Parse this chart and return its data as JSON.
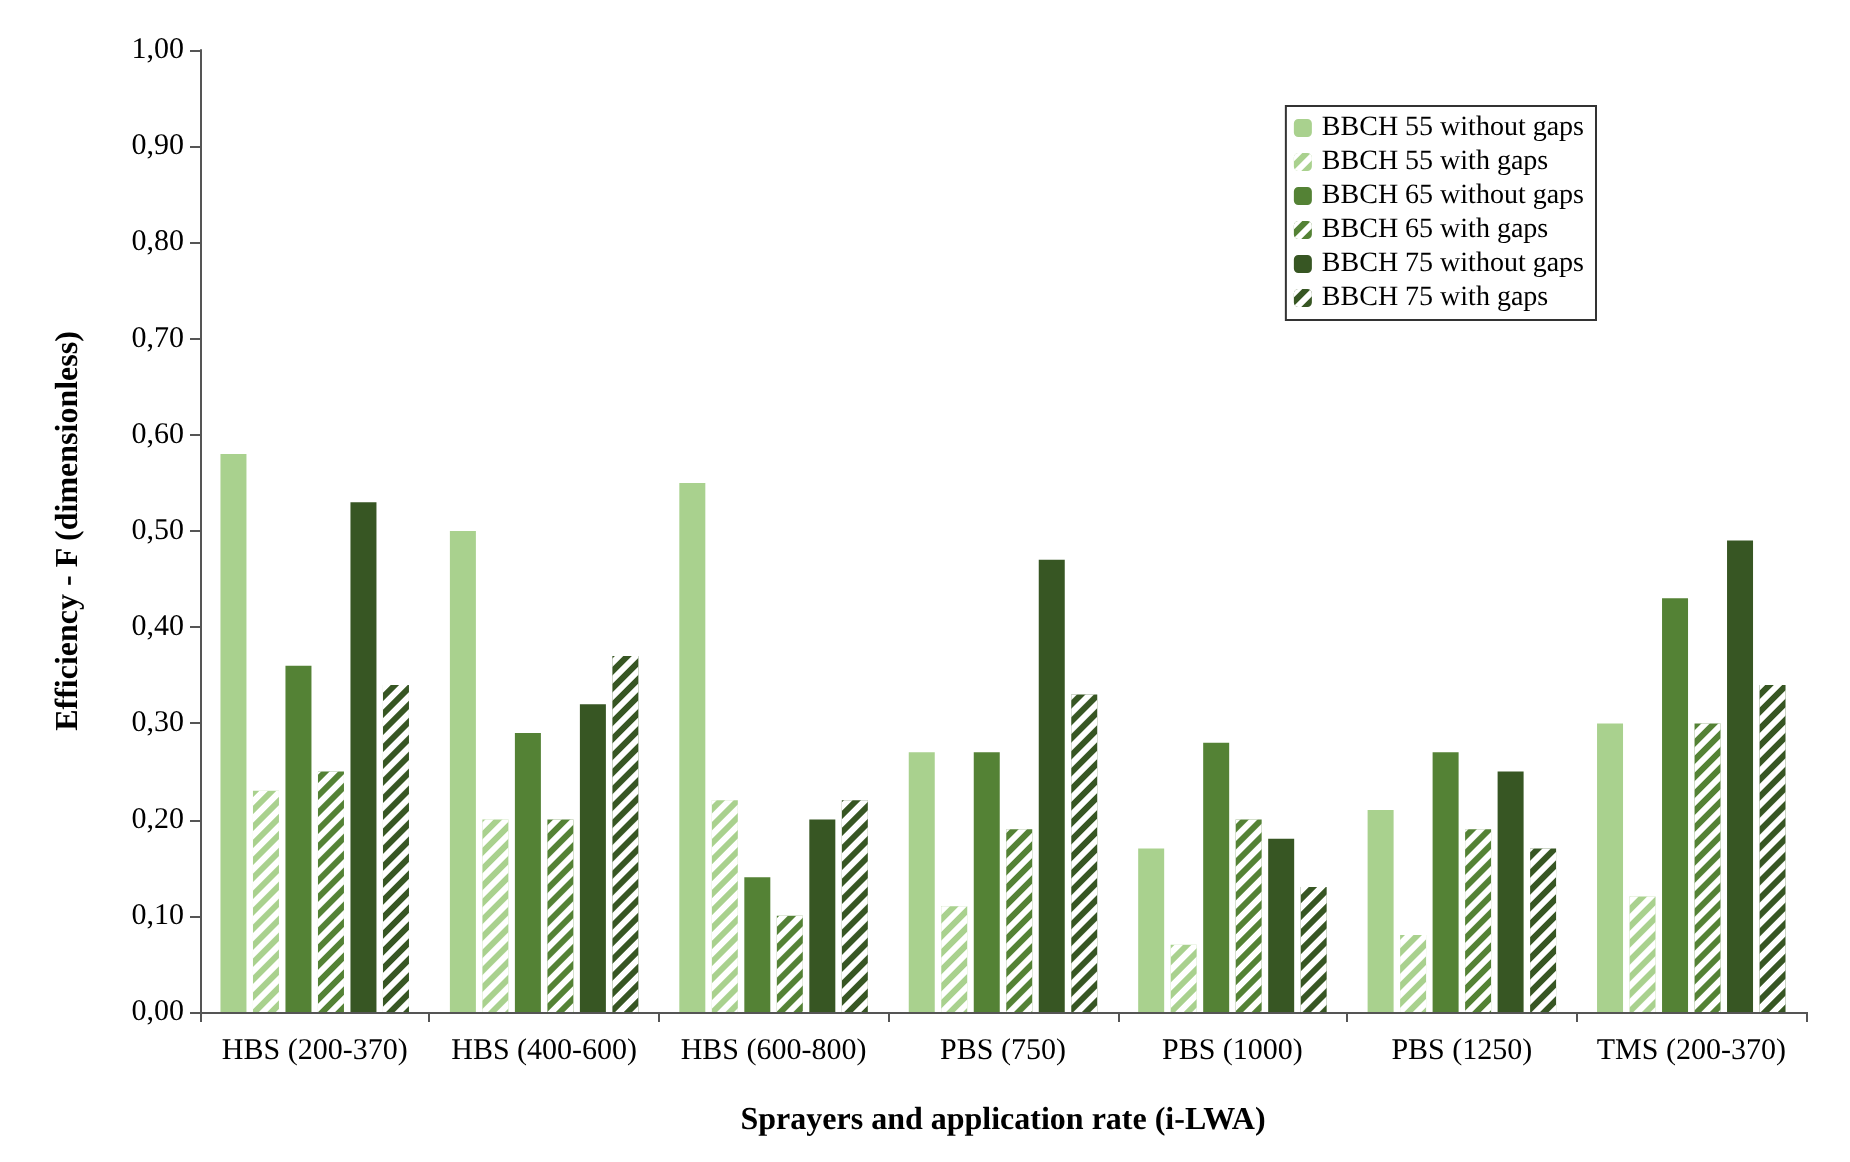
{
  "chart_data": {
    "type": "bar",
    "xlabel": "Sprayers and application rate (i-LWA)",
    "ylabel": "Efficiency - F (dimensionless)",
    "categories": [
      "HBS (200-370)",
      "HBS (400-600)",
      "HBS (600-800)",
      "PBS (750)",
      "PBS (1000)",
      "PBS (1250)",
      "TMS (200-370)"
    ],
    "series": [
      {
        "name": "BBCH 55 without gaps",
        "color": "#a9d18e",
        "values": [
          0.58,
          0.5,
          0.55,
          0.27,
          0.17,
          0.21,
          0.3
        ]
      },
      {
        "name": "BBCH 55 with gaps",
        "color": "#a9d18e",
        "line_style": "dashed",
        "values": [
          0.23,
          0.2,
          0.22,
          0.11,
          0.07,
          0.08,
          0.12
        ]
      },
      {
        "name": "BBCH 65 without gaps",
        "color": "#548235",
        "values": [
          0.36,
          0.29,
          0.14,
          0.27,
          0.28,
          0.27,
          0.43
        ]
      },
      {
        "name": "BBCH 65 with gaps",
        "color": "#548235",
        "line_style": "dashed",
        "values": [
          0.25,
          0.2,
          0.1,
          0.19,
          0.2,
          0.19,
          0.3
        ]
      },
      {
        "name": "BBCH 75 without gaps",
        "color": "#375623",
        "values": [
          0.53,
          0.32,
          0.2,
          0.47,
          0.18,
          0.25,
          0.49
        ]
      },
      {
        "name": "BBCH 75 with gaps",
        "color": "#375623",
        "line_style": "dashed",
        "values": [
          0.34,
          0.37,
          0.22,
          0.33,
          0.13,
          0.17,
          0.34
        ]
      }
    ],
    "ylim": [
      0,
      1
    ],
    "yticks": [
      {
        "value": 0,
        "label": "0,00"
      },
      {
        "value": 0.1,
        "label": "0,10"
      },
      {
        "value": 0.2,
        "label": "0,20"
      },
      {
        "value": 0.3,
        "label": "0,30"
      },
      {
        "value": 0.4,
        "label": "0,40"
      },
      {
        "value": 0.5,
        "label": "0,50"
      },
      {
        "value": 0.6,
        "label": "0,60"
      },
      {
        "value": 0.7,
        "label": "0,70"
      },
      {
        "value": 0.8,
        "label": "0,80"
      },
      {
        "value": 0.9,
        "label": "0,90"
      },
      {
        "value": 1,
        "label": "1,00"
      }
    ],
    "grid": false,
    "legend": "top right"
  }
}
